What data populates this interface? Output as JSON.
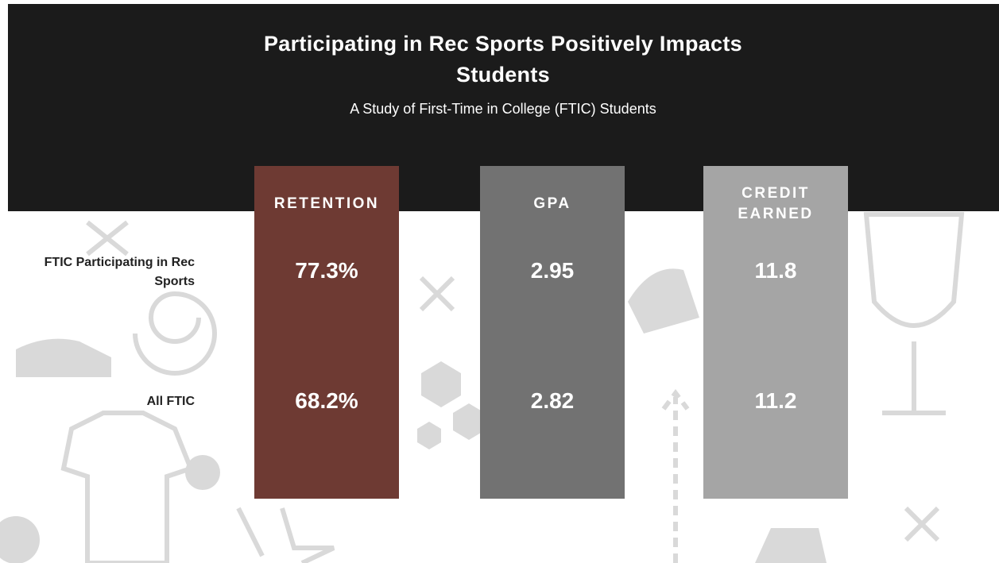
{
  "header": {
    "title": "Participating in Rec Sports Positively Impacts Students",
    "subtitle": "A Study of First-Time in College (FTIC) Students"
  },
  "table": {
    "columns": [
      "RETENTION",
      "GPA",
      "CREDIT EARNED"
    ],
    "rows": [
      {
        "label": "FTIC Participating in Rec Sports",
        "cells": [
          "77.3%",
          "2.95",
          "11.8"
        ]
      },
      {
        "label": "All FTIC",
        "cells": [
          "68.2%",
          "2.82",
          "11.2"
        ]
      }
    ]
  }
}
